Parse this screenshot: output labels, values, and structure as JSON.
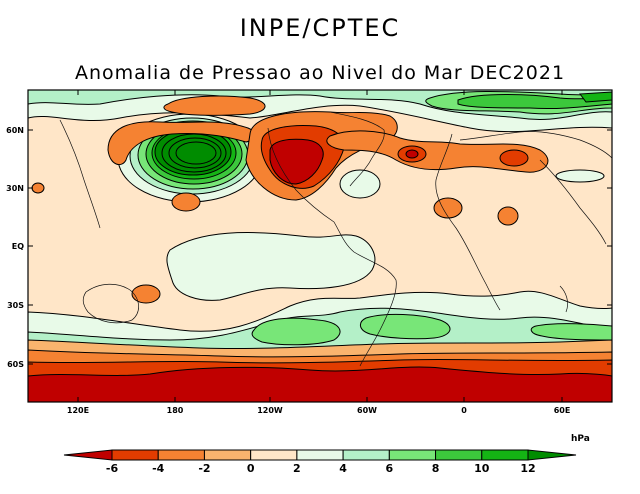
{
  "header": {
    "institution": "INPE/CPTEC",
    "title": "Anomalia de Pressao ao Nivel do Mar DEC2021"
  },
  "map": {
    "lat_ticks": [
      "60N",
      "30N",
      "EQ",
      "30S",
      "60S"
    ],
    "lon_ticks": [
      "120E",
      "180",
      "120W",
      "60W",
      "0",
      "60E"
    ]
  },
  "colorbar": {
    "unit": "hPa",
    "levels": [
      "-6",
      "-4",
      "-2",
      "0",
      "2",
      "4",
      "6",
      "8",
      "10",
      "12"
    ],
    "colors": [
      "#c00000",
      "#e23c00",
      "#f58232",
      "#fab46e",
      "#ffe6c8",
      "#e8fae8",
      "#b4f0c8",
      "#78e678",
      "#3cc83c",
      "#14b414",
      "#008c00"
    ]
  }
}
